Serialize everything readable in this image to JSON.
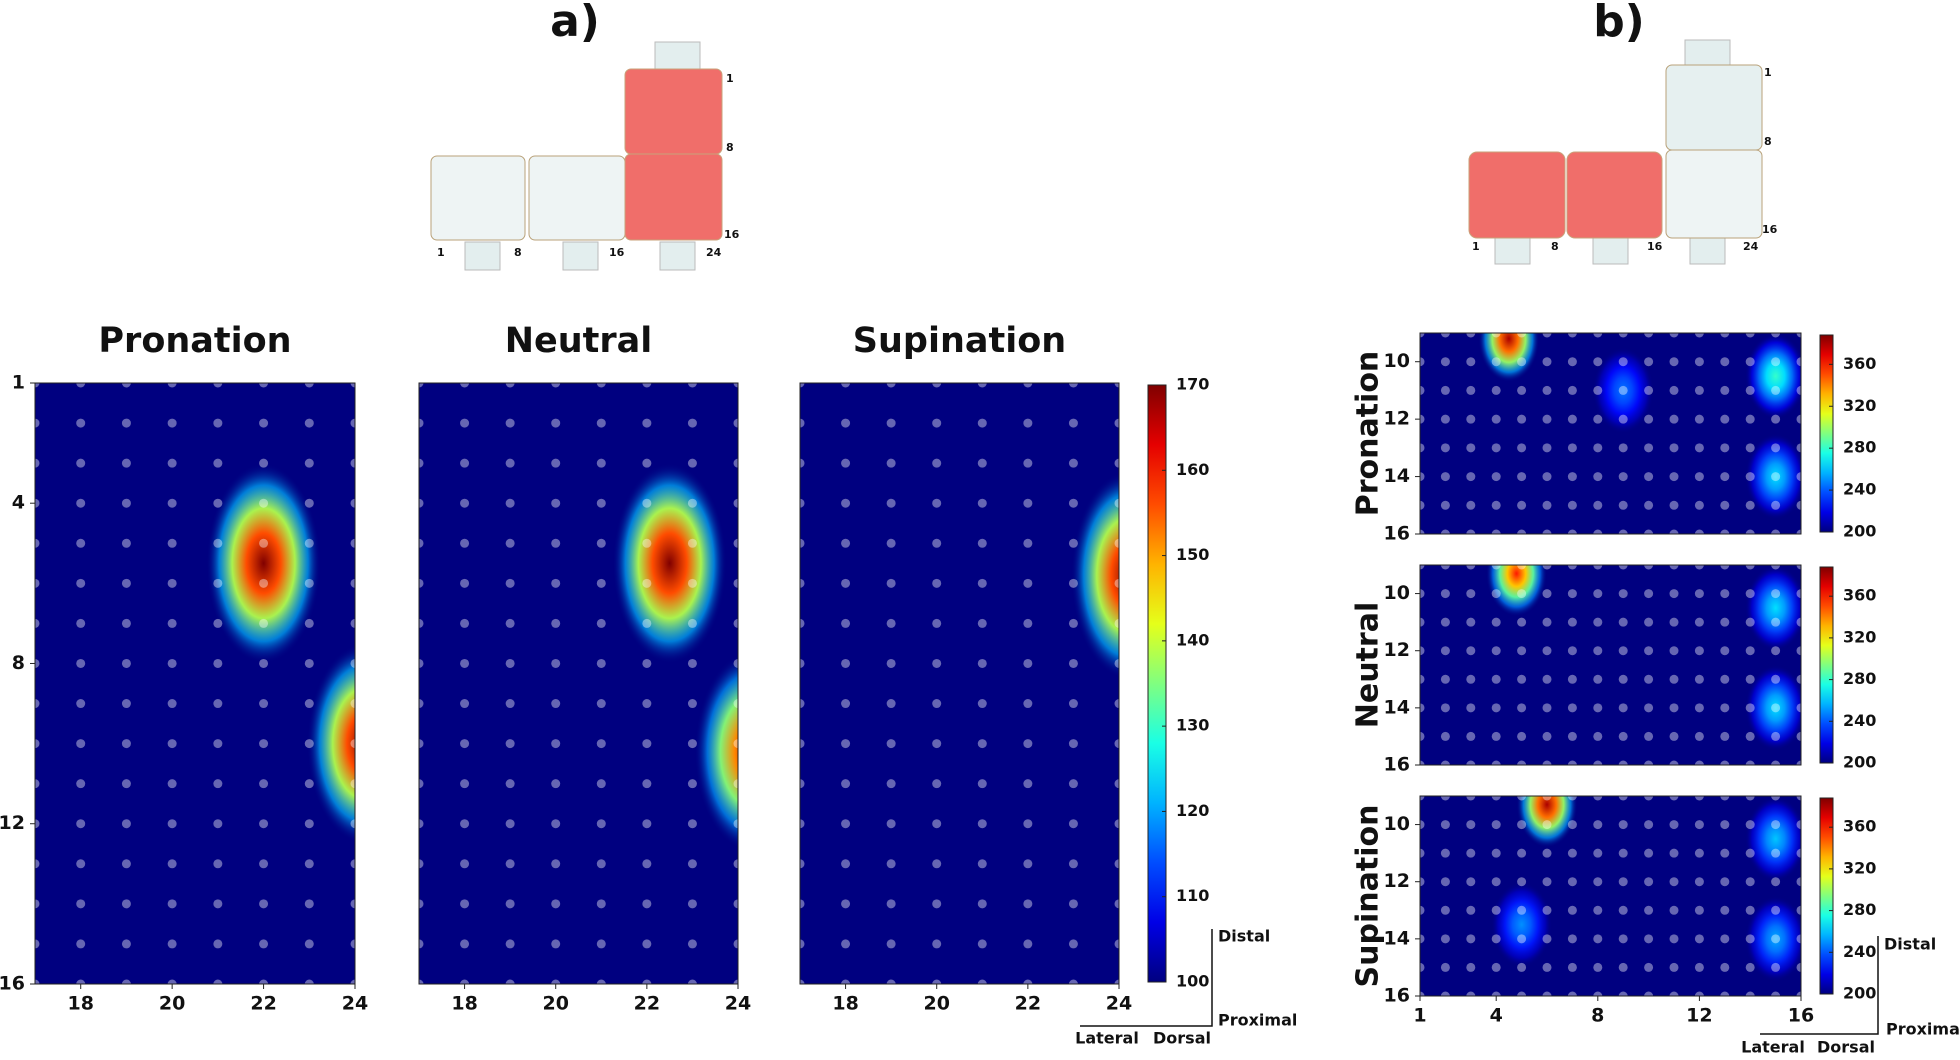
{
  "figure": {
    "panel_a_label": "a)",
    "panel_b_label": "b)",
    "diagram_a": {
      "labels": [
        "1",
        "8",
        "16",
        "24",
        "1",
        "8",
        "16"
      ]
    },
    "diagram_b": {
      "labels": [
        "1",
        "8",
        "16",
        "1",
        "8",
        "16",
        "24"
      ]
    },
    "orientation_a": {
      "distal": "Distal",
      "proximal": "Proximal",
      "lateral": "Lateral",
      "dorsal": "Dorsal"
    },
    "orientation_b": {
      "distal": "Distal",
      "proximal": "Proximal",
      "lateral": "Lateral",
      "dorsal": "Dorsal"
    }
  },
  "chart_data": [
    {
      "type": "heatmap",
      "title": "Pronation",
      "xlim": [
        17,
        24
      ],
      "xticks": [
        18,
        20,
        22,
        24
      ],
      "ylim": [
        1,
        16
      ],
      "yticks": [
        1,
        4,
        8,
        12,
        16
      ],
      "hotspots": [
        {
          "x": 22,
          "y": 5.5,
          "value": 170
        },
        {
          "x": 24.2,
          "y": 10,
          "value": 170
        }
      ]
    },
    {
      "type": "heatmap",
      "title": "Neutral",
      "xlim": [
        17,
        24
      ],
      "xticks": [
        18,
        20,
        22,
        24
      ],
      "ylim": [
        1,
        16
      ],
      "yticks": [],
      "hotspots": [
        {
          "x": 22.5,
          "y": 5.5,
          "value": 170
        },
        {
          "x": 24.3,
          "y": 10.2,
          "value": 165
        }
      ]
    },
    {
      "type": "heatmap",
      "title": "Supination",
      "xlim": [
        17,
        24
      ],
      "xticks": [
        18,
        20,
        22,
        24
      ],
      "ylim": [
        1,
        16
      ],
      "yticks": [],
      "hotspots": [
        {
          "x": 24.2,
          "y": 5.8,
          "value": 170
        }
      ],
      "colorbar": {
        "lim": [
          100,
          170
        ],
        "ticks": [
          100,
          110,
          120,
          130,
          140,
          150,
          160,
          170
        ]
      }
    },
    {
      "type": "heatmap",
      "title": "Pronation",
      "xlim": [
        1,
        16
      ],
      "xticks": [],
      "ylim": [
        9,
        16
      ],
      "yticks": [
        10,
        12,
        14,
        16
      ],
      "hotspots": [
        {
          "x": 4.5,
          "y": 9.2,
          "value": 380
        },
        {
          "x": 9,
          "y": 11,
          "value": 245
        },
        {
          "x": 15,
          "y": 10.5,
          "value": 280
        },
        {
          "x": 15,
          "y": 14,
          "value": 265
        }
      ],
      "colorbar": {
        "lim": [
          200,
          388
        ],
        "ticks": [
          200,
          240,
          280,
          320,
          360
        ]
      }
    },
    {
      "type": "heatmap",
      "title": "Neutral",
      "xlim": [
        1,
        16
      ],
      "xticks": [],
      "ylim": [
        9,
        16
      ],
      "yticks": [
        10,
        12,
        14,
        16
      ],
      "hotspots": [
        {
          "x": 4.8,
          "y": 9.3,
          "value": 360
        },
        {
          "x": 15,
          "y": 10.5,
          "value": 265
        },
        {
          "x": 15,
          "y": 14,
          "value": 265
        }
      ],
      "colorbar": {
        "lim": [
          200,
          388
        ],
        "ticks": [
          200,
          240,
          280,
          320,
          360
        ]
      }
    },
    {
      "type": "heatmap",
      "title": "Supination",
      "xlim": [
        1,
        16
      ],
      "xticks": [
        1,
        4,
        8,
        12,
        16
      ],
      "ylim": [
        9,
        16
      ],
      "yticks": [
        10,
        12,
        14,
        16
      ],
      "hotspots": [
        {
          "x": 6,
          "y": 9.3,
          "value": 380
        },
        {
          "x": 5,
          "y": 13.5,
          "value": 250
        },
        {
          "x": 15,
          "y": 10.5,
          "value": 260
        },
        {
          "x": 15,
          "y": 14,
          "value": 255
        }
      ],
      "colorbar": {
        "lim": [
          200,
          388
        ],
        "ticks": [
          200,
          240,
          280,
          320,
          360
        ]
      }
    }
  ]
}
